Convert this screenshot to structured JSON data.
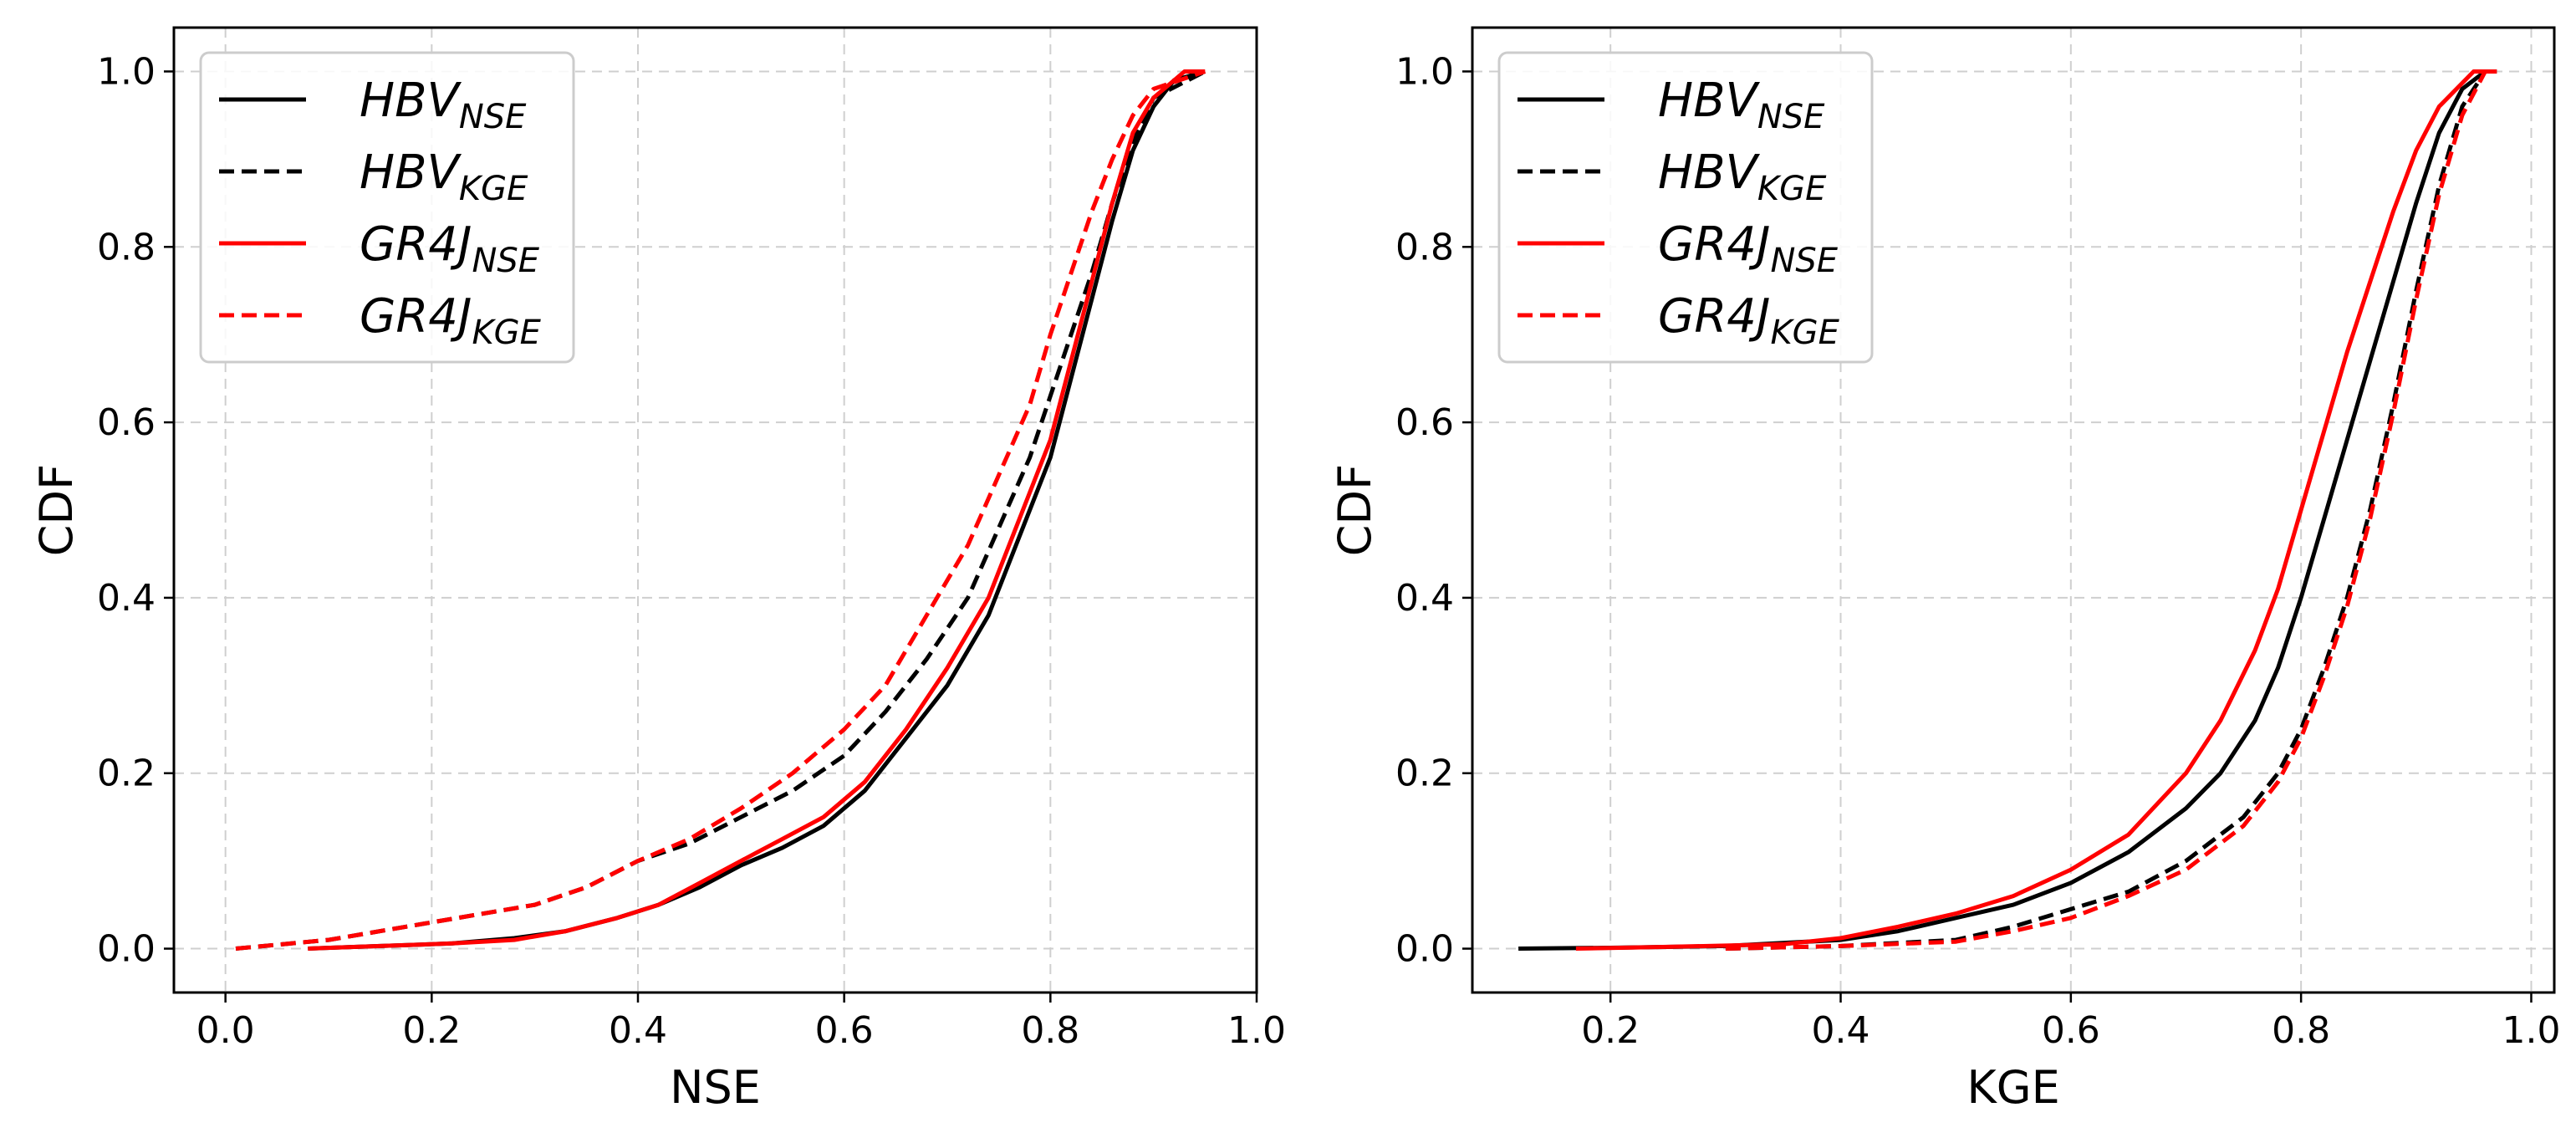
{
  "chart_data": [
    {
      "type": "line",
      "plot_kind": "cdf",
      "xlabel": "NSE",
      "ylabel": "CDF",
      "xlim": [
        -0.05,
        1.0
      ],
      "ylim": [
        -0.05,
        1.05
      ],
      "xticks": [
        0.0,
        0.2,
        0.4,
        0.6,
        0.8,
        1.0
      ],
      "xtick_labels": [
        "0.0",
        "0.2",
        "0.4",
        "0.6",
        "0.8",
        "1.0"
      ],
      "yticks": [
        0.0,
        0.2,
        0.4,
        0.6,
        0.8,
        1.0
      ],
      "ytick_labels": [
        "0.0",
        "0.2",
        "0.4",
        "0.6",
        "0.8",
        "1.0"
      ],
      "grid": true,
      "legend_position": "top-left",
      "series": [
        {
          "name": "HBV_NSE",
          "label_main": "HBV",
          "label_sub": "NSE",
          "color": "#000000",
          "dash": "solid",
          "x": [
            0.08,
            0.15,
            0.22,
            0.28,
            0.33,
            0.38,
            0.42,
            0.46,
            0.5,
            0.54,
            0.58,
            0.62,
            0.66,
            0.7,
            0.74,
            0.77,
            0.8,
            0.82,
            0.84,
            0.86,
            0.88,
            0.9,
            0.92,
            0.95
          ],
          "y": [
            0.0,
            0.003,
            0.006,
            0.012,
            0.02,
            0.035,
            0.05,
            0.07,
            0.095,
            0.115,
            0.14,
            0.18,
            0.24,
            0.3,
            0.38,
            0.47,
            0.56,
            0.65,
            0.74,
            0.83,
            0.91,
            0.96,
            0.99,
            1.0
          ]
        },
        {
          "name": "HBV_KGE",
          "label_main": "HBV",
          "label_sub": "KGE",
          "color": "#000000",
          "dash": "dashed",
          "x": [
            0.01,
            0.1,
            0.2,
            0.3,
            0.35,
            0.4,
            0.45,
            0.5,
            0.55,
            0.6,
            0.64,
            0.68,
            0.72,
            0.75,
            0.78,
            0.8,
            0.82,
            0.84,
            0.86,
            0.88,
            0.9,
            0.95
          ],
          "y": [
            0.0,
            0.01,
            0.03,
            0.05,
            0.07,
            0.1,
            0.12,
            0.15,
            0.18,
            0.22,
            0.27,
            0.33,
            0.4,
            0.48,
            0.56,
            0.63,
            0.7,
            0.77,
            0.85,
            0.92,
            0.97,
            1.0
          ]
        },
        {
          "name": "GR4J_NSE",
          "label_main": "GR4J",
          "label_sub": "NSE",
          "color": "#ff0000",
          "dash": "solid",
          "x": [
            0.08,
            0.15,
            0.22,
            0.28,
            0.33,
            0.38,
            0.42,
            0.46,
            0.5,
            0.54,
            0.58,
            0.62,
            0.66,
            0.7,
            0.74,
            0.77,
            0.8,
            0.82,
            0.84,
            0.86,
            0.88,
            0.9,
            0.93,
            0.95
          ],
          "y": [
            0.0,
            0.003,
            0.006,
            0.01,
            0.02,
            0.035,
            0.05,
            0.075,
            0.1,
            0.125,
            0.15,
            0.19,
            0.25,
            0.32,
            0.4,
            0.49,
            0.58,
            0.67,
            0.76,
            0.85,
            0.93,
            0.97,
            1.0,
            1.0
          ]
        },
        {
          "name": "GR4J_KGE",
          "label_main": "GR4J",
          "label_sub": "KGE",
          "color": "#ff0000",
          "dash": "dashed",
          "x": [
            0.01,
            0.1,
            0.2,
            0.3,
            0.35,
            0.4,
            0.45,
            0.5,
            0.55,
            0.6,
            0.64,
            0.68,
            0.72,
            0.75,
            0.78,
            0.8,
            0.82,
            0.84,
            0.86,
            0.88,
            0.9,
            0.95
          ],
          "y": [
            0.0,
            0.01,
            0.03,
            0.05,
            0.07,
            0.1,
            0.125,
            0.16,
            0.2,
            0.25,
            0.3,
            0.38,
            0.46,
            0.54,
            0.62,
            0.7,
            0.77,
            0.84,
            0.9,
            0.95,
            0.98,
            1.0
          ]
        }
      ]
    },
    {
      "type": "line",
      "plot_kind": "cdf",
      "xlabel": "KGE",
      "ylabel": "CDF",
      "xlim": [
        0.08,
        1.02
      ],
      "ylim": [
        -0.05,
        1.05
      ],
      "xticks": [
        0.2,
        0.4,
        0.6,
        0.8,
        1.0
      ],
      "xtick_labels": [
        "0.2",
        "0.4",
        "0.6",
        "0.8",
        "1.0"
      ],
      "yticks": [
        0.0,
        0.2,
        0.4,
        0.6,
        0.8,
        1.0
      ],
      "ytick_labels": [
        "0.0",
        "0.2",
        "0.4",
        "0.6",
        "0.8",
        "1.0"
      ],
      "grid": true,
      "legend_position": "top-left",
      "series": [
        {
          "name": "HBV_NSE",
          "label_main": "HBV",
          "label_sub": "NSE",
          "color": "#000000",
          "dash": "solid",
          "x": [
            0.12,
            0.2,
            0.3,
            0.4,
            0.45,
            0.5,
            0.55,
            0.6,
            0.65,
            0.7,
            0.73,
            0.76,
            0.78,
            0.8,
            0.82,
            0.84,
            0.86,
            0.88,
            0.9,
            0.92,
            0.94,
            0.96,
            0.97
          ],
          "y": [
            0.0,
            0.001,
            0.003,
            0.01,
            0.02,
            0.035,
            0.05,
            0.075,
            0.11,
            0.16,
            0.2,
            0.26,
            0.32,
            0.4,
            0.49,
            0.58,
            0.67,
            0.76,
            0.85,
            0.93,
            0.98,
            1.0,
            1.0
          ]
        },
        {
          "name": "HBV_KGE",
          "label_main": "HBV",
          "label_sub": "KGE",
          "color": "#000000",
          "dash": "dashed",
          "x": [
            0.3,
            0.4,
            0.5,
            0.55,
            0.6,
            0.65,
            0.7,
            0.75,
            0.78,
            0.8,
            0.82,
            0.84,
            0.86,
            0.88,
            0.9,
            0.92,
            0.94,
            0.96,
            0.97
          ],
          "y": [
            0.0,
            0.003,
            0.01,
            0.025,
            0.045,
            0.065,
            0.1,
            0.15,
            0.2,
            0.25,
            0.32,
            0.4,
            0.5,
            0.62,
            0.75,
            0.87,
            0.96,
            1.0,
            1.0
          ]
        },
        {
          "name": "GR4J_NSE",
          "label_main": "GR4J",
          "label_sub": "NSE",
          "color": "#ff0000",
          "dash": "solid",
          "x": [
            0.17,
            0.25,
            0.35,
            0.4,
            0.45,
            0.5,
            0.55,
            0.6,
            0.65,
            0.7,
            0.73,
            0.76,
            0.78,
            0.8,
            0.82,
            0.84,
            0.86,
            0.88,
            0.9,
            0.92,
            0.95,
            0.97
          ],
          "y": [
            0.0,
            0.002,
            0.005,
            0.012,
            0.025,
            0.04,
            0.06,
            0.09,
            0.13,
            0.2,
            0.26,
            0.34,
            0.41,
            0.5,
            0.59,
            0.68,
            0.76,
            0.84,
            0.91,
            0.96,
            1.0,
            1.0
          ]
        },
        {
          "name": "GR4J_KGE",
          "label_main": "GR4J",
          "label_sub": "KGE",
          "color": "#ff0000",
          "dash": "dashed",
          "x": [
            0.3,
            0.4,
            0.5,
            0.55,
            0.6,
            0.65,
            0.7,
            0.75,
            0.78,
            0.8,
            0.82,
            0.84,
            0.86,
            0.88,
            0.9,
            0.92,
            0.94,
            0.96,
            0.97
          ],
          "y": [
            0.0,
            0.003,
            0.008,
            0.02,
            0.035,
            0.06,
            0.09,
            0.14,
            0.19,
            0.24,
            0.31,
            0.39,
            0.49,
            0.61,
            0.74,
            0.86,
            0.95,
            1.0,
            1.0
          ]
        }
      ]
    }
  ]
}
